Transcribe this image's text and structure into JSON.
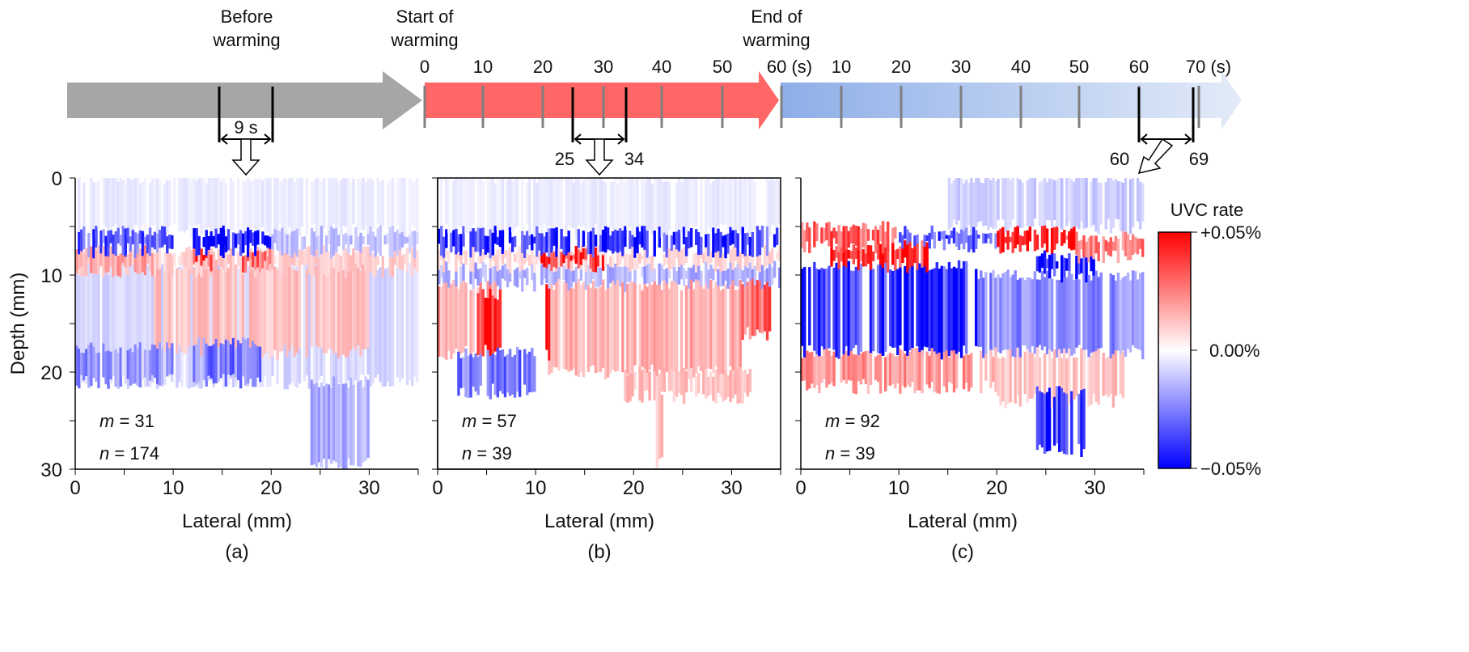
{
  "timeline": {
    "phases": [
      {
        "label_line1": "Before",
        "label_line2": "warming",
        "color": "#a6a6a6"
      },
      {
        "label_line1": "Start of",
        "label_line2": "warming",
        "color": "#ff6666"
      },
      {
        "label_line1": "End of",
        "label_line2": "warming",
        "color": "#8eaee8"
      }
    ],
    "warming_ticks": [
      "0",
      "10",
      "20",
      "30",
      "40",
      "50",
      "60 (s)"
    ],
    "cooling_ticks": [
      "10",
      "20",
      "30",
      "40",
      "50",
      "60",
      "70 (s)"
    ],
    "windows": [
      {
        "label": "9 s"
      },
      {
        "start": "25",
        "end": "34"
      },
      {
        "start": "60",
        "end": "69"
      }
    ]
  },
  "colorbar": {
    "title": "UVC rate",
    "max_label": "+0.05%",
    "mid_label": "0.00%",
    "min_label": "−0.05%",
    "colors": {
      "positive": "#ff0000",
      "zero": "#ffffff",
      "negative": "#0000ff"
    }
  },
  "chart_data": [
    {
      "type": "heatmap",
      "panel_label": "(a)",
      "xlabel": "Lateral (mm)",
      "ylabel": "Depth (mm)",
      "xlim": [
        0,
        35
      ],
      "ylim": [
        30,
        0
      ],
      "xticks": [
        "0",
        "10",
        "20",
        "30"
      ],
      "yticks": [
        "0",
        "10",
        "20",
        "30"
      ],
      "clim_percent": [
        -0.05,
        0.05
      ],
      "m_label": "m",
      "m_value": "31",
      "n_label": "n",
      "n_value": "174",
      "regions": [
        {
          "lateral": [
            0,
            35
          ],
          "depth": [
            0,
            5.5
          ],
          "rate": -0.004
        },
        {
          "lateral": [
            0,
            35
          ],
          "depth": [
            9,
            21
          ],
          "rate": -0.008
        },
        {
          "lateral": [
            8,
            30
          ],
          "depth": [
            9,
            18
          ],
          "rate": 0.012
        },
        {
          "lateral": [
            0,
            10
          ],
          "depth": [
            17.5,
            21
          ],
          "rate": -0.022
        },
        {
          "lateral": [
            12,
            19
          ],
          "depth": [
            17,
            21
          ],
          "rate": -0.026
        },
        {
          "lateral": [
            24,
            30
          ],
          "depth": [
            21,
            29.5
          ],
          "rate": -0.016
        },
        {
          "lateral": [
            0,
            35
          ],
          "depth": [
            7.5,
            9.5
          ],
          "rate": 0.01
        },
        {
          "lateral": [
            0,
            8
          ],
          "depth": [
            7.5,
            9.5
          ],
          "rate": 0.018
        },
        {
          "lateral": [
            12,
            14
          ],
          "depth": [
            7.5,
            9
          ],
          "rate": 0.042
        },
        {
          "lateral": [
            17,
            20
          ],
          "depth": [
            7.5,
            9
          ],
          "rate": 0.03
        },
        {
          "lateral": [
            0,
            10
          ],
          "depth": [
            5.5,
            7.5
          ],
          "rate": -0.032
        },
        {
          "lateral": [
            12,
            20
          ],
          "depth": [
            5.5,
            7.5
          ],
          "rate": -0.045
        },
        {
          "lateral": [
            20,
            35
          ],
          "depth": [
            5.5,
            7.5
          ],
          "rate": -0.012
        }
      ]
    },
    {
      "type": "heatmap",
      "panel_label": "(b)",
      "xlabel": "Lateral (mm)",
      "ylabel": "",
      "xlim": [
        0,
        35
      ],
      "ylim": [
        30,
        0
      ],
      "xticks": [
        "0",
        "10",
        "20",
        "30"
      ],
      "yticks": [],
      "clim_percent": [
        -0.05,
        0.05
      ],
      "m_label": "m",
      "m_value": "57",
      "n_label": "n",
      "n_value": "39",
      "regions": [
        {
          "lateral": [
            0,
            35
          ],
          "depth": [
            0,
            5.5
          ],
          "rate": -0.004
        },
        {
          "lateral": [
            0,
            35
          ],
          "depth": [
            9,
            11
          ],
          "rate": -0.016
        },
        {
          "lateral": [
            0,
            6
          ],
          "depth": [
            11,
            18
          ],
          "rate": 0.018
        },
        {
          "lateral": [
            4,
            6.5
          ],
          "depth": [
            12,
            18
          ],
          "rate": 0.038
        },
        {
          "lateral": [
            11,
            31
          ],
          "depth": [
            11,
            20
          ],
          "rate": 0.016
        },
        {
          "lateral": [
            11,
            12
          ],
          "depth": [
            11,
            18
          ],
          "rate": 0.04
        },
        {
          "lateral": [
            31,
            34
          ],
          "depth": [
            11,
            16
          ],
          "rate": 0.03
        },
        {
          "lateral": [
            2,
            10
          ],
          "depth": [
            18,
            22
          ],
          "rate": -0.026
        },
        {
          "lateral": [
            19,
            32
          ],
          "depth": [
            20,
            22.5
          ],
          "rate": 0.012
        },
        {
          "lateral": [
            22,
            23
          ],
          "depth": [
            22,
            29.5
          ],
          "rate": 0.012
        },
        {
          "lateral": [
            0,
            35
          ],
          "depth": [
            7.5,
            9
          ],
          "rate": 0.008
        },
        {
          "lateral": [
            10,
            17
          ],
          "depth": [
            7.5,
            9
          ],
          "rate": 0.042
        },
        {
          "lateral": [
            0,
            35
          ],
          "depth": [
            5.5,
            7.5
          ],
          "rate": -0.04
        }
      ]
    },
    {
      "type": "heatmap",
      "panel_label": "(c)",
      "xlabel": "Lateral (mm)",
      "ylabel": "",
      "xlim": [
        0,
        35
      ],
      "ylim": [
        30,
        0
      ],
      "xticks": [
        "0",
        "10",
        "20",
        "30"
      ],
      "yticks": [],
      "clim_percent": [
        -0.05,
        0.05
      ],
      "m_label": "m",
      "m_value": "92",
      "n_label": "n",
      "n_value": "39",
      "regions": [
        {
          "lateral": [
            15,
            35
          ],
          "depth": [
            0,
            5
          ],
          "rate": -0.01
        },
        {
          "lateral": [
            0,
            18
          ],
          "depth": [
            9,
            18
          ],
          "rate": -0.04
        },
        {
          "lateral": [
            18,
            35
          ],
          "depth": [
            10,
            18
          ],
          "rate": -0.022
        },
        {
          "lateral": [
            0,
            20
          ],
          "depth": [
            18,
            21.5
          ],
          "rate": 0.02
        },
        {
          "lateral": [
            20,
            33
          ],
          "depth": [
            18,
            23
          ],
          "rate": 0.012
        },
        {
          "lateral": [
            24,
            29
          ],
          "depth": [
            22,
            28
          ],
          "rate": -0.04
        },
        {
          "lateral": [
            24,
            30
          ],
          "depth": [
            8,
            10
          ],
          "rate": -0.045
        },
        {
          "lateral": [
            3,
            13
          ],
          "depth": [
            7,
            9
          ],
          "rate": 0.04
        },
        {
          "lateral": [
            0,
            10
          ],
          "depth": [
            5,
            7
          ],
          "rate": 0.03
        },
        {
          "lateral": [
            10,
            20
          ],
          "depth": [
            5.5,
            7
          ],
          "rate": -0.035
        },
        {
          "lateral": [
            20,
            28
          ],
          "depth": [
            5.5,
            7
          ],
          "rate": 0.045
        },
        {
          "lateral": [
            28,
            35
          ],
          "depth": [
            6,
            8
          ],
          "rate": 0.025
        }
      ]
    }
  ]
}
